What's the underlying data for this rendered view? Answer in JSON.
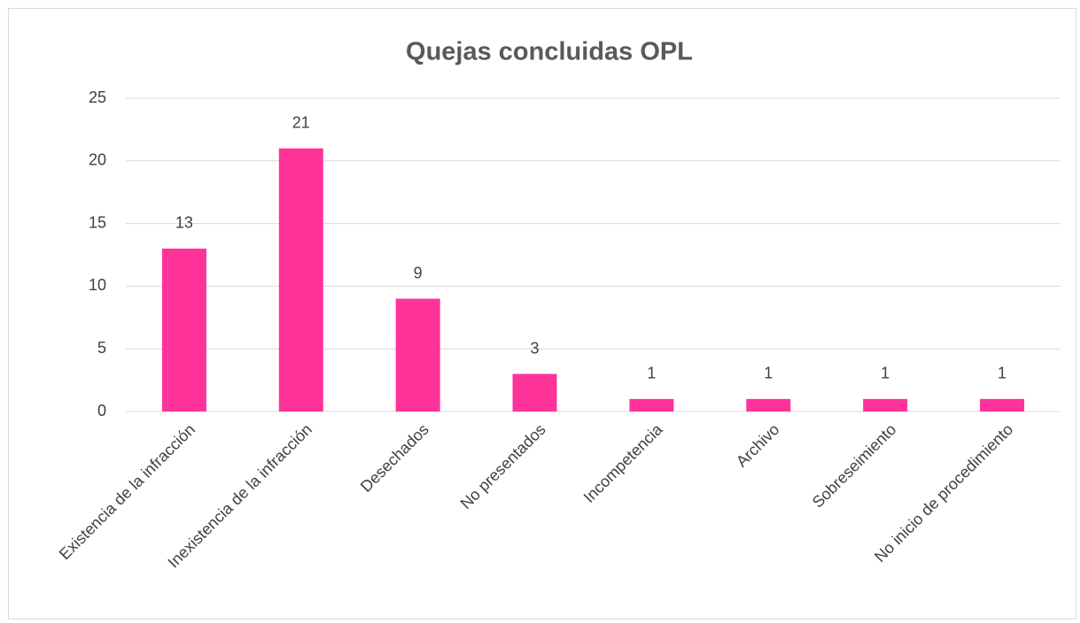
{
  "chart_data": {
    "type": "bar",
    "title": "Quejas concluidas OPL",
    "categories": [
      "Existencia de la infracción",
      "Inexistencia de la infracción",
      "Desechados",
      "No presentados",
      "Incompetencia",
      "Archivo",
      "Sobreseimiento",
      "No inicio de procedimiento"
    ],
    "values": [
      13,
      21,
      9,
      3,
      1,
      1,
      1,
      1
    ],
    "color": "#ff3399",
    "ylim": [
      0,
      25
    ],
    "yticks": [
      0,
      5,
      10,
      15,
      20,
      25
    ],
    "grid": true
  }
}
